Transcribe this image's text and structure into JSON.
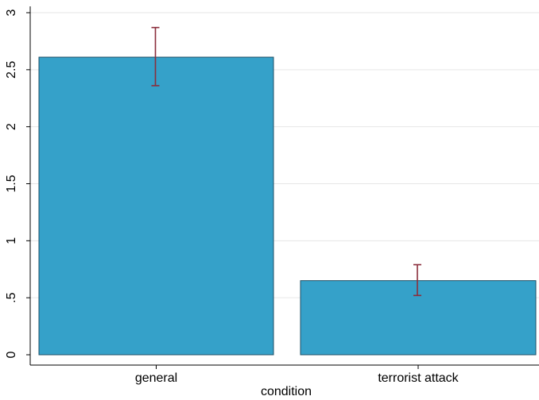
{
  "chart_data": {
    "type": "bar",
    "title": "",
    "xlabel": "condition",
    "ylabel": "",
    "categories": [
      "general",
      "terrorist attack"
    ],
    "values": [
      2.61,
      0.65
    ],
    "error_bars": [
      {
        "low": 2.36,
        "high": 2.87
      },
      {
        "low": 0.52,
        "high": 0.79
      }
    ],
    "ylim": [
      0,
      3
    ],
    "yticks": [
      {
        "value": 0,
        "label": "0"
      },
      {
        "value": 0.5,
        "label": ".5"
      },
      {
        "value": 1,
        "label": "1"
      },
      {
        "value": 1.5,
        "label": "1.5"
      },
      {
        "value": 2,
        "label": "2"
      },
      {
        "value": 2.5,
        "label": "2.5"
      },
      {
        "value": 3,
        "label": "3"
      }
    ],
    "grid": true,
    "legend": "none",
    "colors": {
      "bar": "#35a1c9",
      "bar_edge": "#1f4f66",
      "error_bar": "#8b2e3c",
      "grid": "#e6e6e6",
      "axis": "#000000"
    }
  }
}
